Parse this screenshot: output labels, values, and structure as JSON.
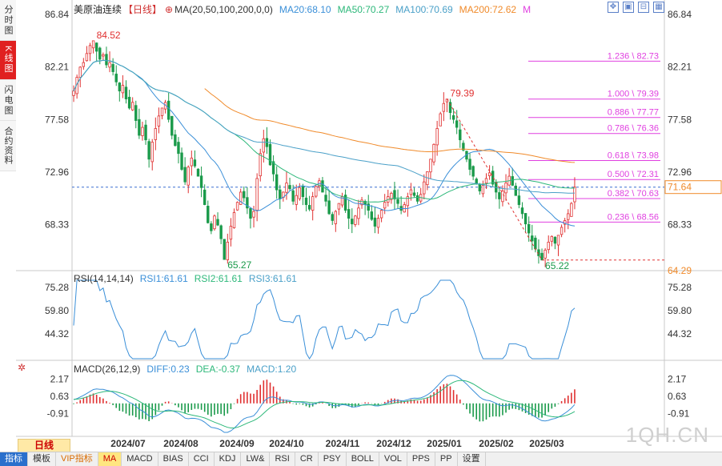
{
  "sidebar": {
    "tabs": [
      {
        "label": "分时图",
        "active": false
      },
      {
        "label": "K线图",
        "active": true
      },
      {
        "label": "闪电图",
        "active": false
      },
      {
        "label": "合约资料",
        "active": false
      }
    ]
  },
  "legend": {
    "symbol": "美原油连续",
    "period": "【日线】",
    "ma_spec": "MA(20,50,100,200,0,0)",
    "ma20": "MA20:68.10",
    "ma50": "MA50:70.27",
    "ma100": "MA100:70.69",
    "ma200": "MA200:72.62",
    "m_flag": "M",
    "colors": {
      "ma20": "#3a8fd8",
      "ma50": "#2db87a",
      "ma100": "#4aa0c8",
      "ma200": "#f08a2a",
      "m": "#e040e0"
    }
  },
  "toolbar_icons": [
    "move-icon",
    "zoom-in-icon",
    "zoom-out-icon",
    "settings-icon"
  ],
  "rsi_legend": {
    "spec": "RSI(14,14,14)",
    "rsi1": "RSI1:61.61",
    "rsi2": "RSI2:61.61",
    "rsi3": "RSI3:61.61"
  },
  "macd_legend": {
    "spec": "MACD(26,12,9)",
    "diff": "DIFF:0.23",
    "dea": "DEA:-0.37",
    "macd": "MACD:1.20"
  },
  "period_selector": "日线",
  "bottom_tabs": [
    "指标",
    "模板",
    "VIP指标",
    "MA",
    "MACD",
    "BIAS",
    "CCI",
    "KDJ",
    "LW&",
    "RSI",
    "CR",
    "PSY",
    "BOLL",
    "VOL",
    "PPS",
    "PP",
    "设置"
  ],
  "watermark": "1QH.CN",
  "chart_data": [
    {
      "type": "candlestick",
      "title": "美原油连续【日线】",
      "x_labels": [
        "2024/07",
        "2024/08",
        "2024/09",
        "2024/10",
        "2024/11",
        "2024/12",
        "2025/01",
        "2025/02",
        "2025/03"
      ],
      "y_ticks_left": [
        86.84,
        82.21,
        77.58,
        72.96,
        68.33
      ],
      "y_ticks_right": [
        86.84,
        82.21,
        77.58,
        72.96,
        68.33,
        64.29
      ],
      "ylim": [
        64.29,
        86.84
      ],
      "last_price": 71.64,
      "closes": [
        80.1,
        81.3,
        82.2,
        82.6,
        83.4,
        84.1,
        84.52,
        83.6,
        82.9,
        83.3,
        82.4,
        82.6,
        81.8,
        80.9,
        80.1,
        80.6,
        79.4,
        78.6,
        79.1,
        77.5,
        76.2,
        76.9,
        75.8,
        74.1,
        75.6,
        76.8,
        77.9,
        78.6,
        79.1,
        77.6,
        76.2,
        75.3,
        74.6,
        73.2,
        72.1,
        73.4,
        74.2,
        73.5,
        72.6,
        71.6,
        70.1,
        68.5,
        67.8,
        69.1,
        68.3,
        67.1,
        65.27,
        66.8,
        68.2,
        69.4,
        70.3,
        71.2,
        70.7,
        69.8,
        68.9,
        69.5,
        72.4,
        74.6,
        75.9,
        75.2,
        73.6,
        72.8,
        71.4,
        70.6,
        71.2,
        72.0,
        71.5,
        70.4,
        70.9,
        71.6,
        70.8,
        70.1,
        69.7,
        70.8,
        71.7,
        72.2,
        71.2,
        70.4,
        69.3,
        68.7,
        69.5,
        70.2,
        70.8,
        69.6,
        68.9,
        68.4,
        69.1,
        69.8,
        70.5,
        70.1,
        69.6,
        68.8,
        68.2,
        68.9,
        69.6,
        70.3,
        70.8,
        71.1,
        70.6,
        70.2,
        69.6,
        70.1,
        70.8,
        71.4,
        70.9,
        70.4,
        71.0,
        72.1,
        73.0,
        74.1,
        75.4,
        76.8,
        78.1,
        79.0,
        79.39,
        78.2,
        77.6,
        76.9,
        75.8,
        74.9,
        74.1,
        73.2,
        72.6,
        72.0,
        71.3,
        71.8,
        72.4,
        72.9,
        71.9,
        71.2,
        70.6,
        71.3,
        72.0,
        72.6,
        71.8,
        70.9,
        70.1,
        69.3,
        68.4,
        67.6,
        66.9,
        66.2,
        65.6,
        65.22,
        66.1,
        66.8,
        67.3,
        66.7,
        67.4,
        68.1,
        68.7,
        69.3,
        70.2,
        71.64
      ],
      "swing_labels": [
        {
          "label": "84.52",
          "bar": 6
        },
        {
          "label": "65.27",
          "bar": 46
        },
        {
          "label": "79.39",
          "bar": 114
        },
        {
          "label": "65.22",
          "bar": 143
        }
      ],
      "fibonacci": [
        {
          "label": "1.236 \\ 82.73",
          "ratio": 1.236,
          "value": 82.73
        },
        {
          "label": "1.000 \\ 79.39",
          "ratio": 1.0,
          "value": 79.39
        },
        {
          "label": "0.886 \\ 77.77",
          "ratio": 0.886,
          "value": 77.77
        },
        {
          "label": "0.786 \\ 76.36",
          "ratio": 0.786,
          "value": 76.36
        },
        {
          "label": "0.618 \\ 73.98",
          "ratio": 0.618,
          "value": 73.98
        },
        {
          "label": "0.500 \\ 72.31",
          "ratio": 0.5,
          "value": 72.31
        },
        {
          "label": "0.382 \\ 70.63",
          "ratio": 0.382,
          "value": 70.63
        },
        {
          "label": "0.236 \\ 68.56",
          "ratio": 0.236,
          "value": 68.56
        }
      ],
      "colors": {
        "up": "#e03030",
        "down": "#1a9a4a",
        "ma20": "#3a8fd8",
        "ma50": "#2db87a",
        "ma100": "#4aa0c8",
        "ma200": "#f08a2a",
        "fib": "#e040e0"
      }
    },
    {
      "type": "line",
      "title": "RSI(14,14,14)",
      "y_ticks": [
        75.28,
        59.8,
        44.32
      ],
      "ylim": [
        28,
        80
      ],
      "series": [
        {
          "name": "RSI1",
          "last": 61.61
        }
      ]
    },
    {
      "type": "bar",
      "title": "MACD(26,12,9)",
      "y_ticks": [
        2.17,
        0.63,
        -0.91
      ],
      "ylim": [
        -2.6,
        3.0
      ],
      "series": [
        {
          "name": "DIFF",
          "last": 0.23
        },
        {
          "name": "DEA",
          "last": -0.37
        },
        {
          "name": "MACD",
          "last": 1.2
        }
      ]
    }
  ]
}
